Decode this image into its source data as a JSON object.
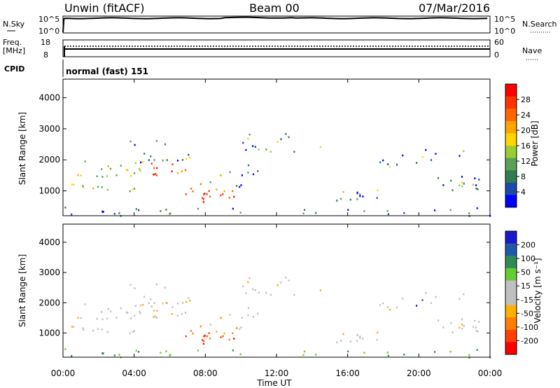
{
  "header": {
    "station": "Unwin (fitACF)",
    "beam": "Beam 00",
    "date": "07/Mar/2016"
  },
  "noise_panel": {
    "left_label": "N.Sky",
    "right_label": "N.Search",
    "tick_top": "10^5",
    "tick_bottom": "10^0"
  },
  "freq_panel": {
    "label_line1": "Freq.",
    "label_line2": "[MHz]",
    "left_tick_top": "18",
    "left_tick_bottom": "8",
    "right_tick_top": "60",
    "right_tick_bottom": "0",
    "right_label": "Nave"
  },
  "cpid": {
    "label": "CPID",
    "value": "normal (fast) 151"
  },
  "colors": {
    "power_scale": [
      "#0000ff",
      "#1d4aa8",
      "#2e7d4f",
      "#5aa05a",
      "#9acd32",
      "#ffd700",
      "#ffa500",
      "#ff6600",
      "#ff3300",
      "#ff0000"
    ],
    "velocity_scale": [
      "#1a1acc",
      "#1e5aa8",
      "#2e8b57",
      "#66cc33",
      "#c0c0c0",
      "#c0c0c0",
      "#ffb000",
      "#ff7f00",
      "#ff4000",
      "#ff0000"
    ]
  },
  "chart_data": [
    {
      "type": "heatmap",
      "title": "",
      "ylabel": "Slant Range [km]",
      "colorbar_label": "Power [dB]",
      "colorbar_ticks": [
        "4",
        "8",
        "12",
        "16",
        "20",
        "24",
        "28"
      ],
      "yticks": [
        "1000",
        "2000",
        "3000",
        "4000"
      ],
      "ylim": [
        200,
        4600
      ]
    },
    {
      "type": "heatmap",
      "title": "",
      "ylabel": "Slant Range [km]",
      "colorbar_label": "Velocity [m s⁻¹]",
      "colorbar_ticks": [
        "200",
        "100",
        "50",
        "15",
        "-15",
        "-50",
        "-100",
        "-200"
      ],
      "yticks": [
        "1000",
        "2000",
        "3000",
        "4000"
      ],
      "ylim": [
        200,
        4600
      ]
    }
  ],
  "x_axis": {
    "label": "Time UT",
    "ticks": [
      "00:00",
      "04:00",
      "08:00",
      "12:00",
      "16:00",
      "20:00",
      "00:00"
    ],
    "xlim_hours": [
      0,
      24
    ]
  }
}
